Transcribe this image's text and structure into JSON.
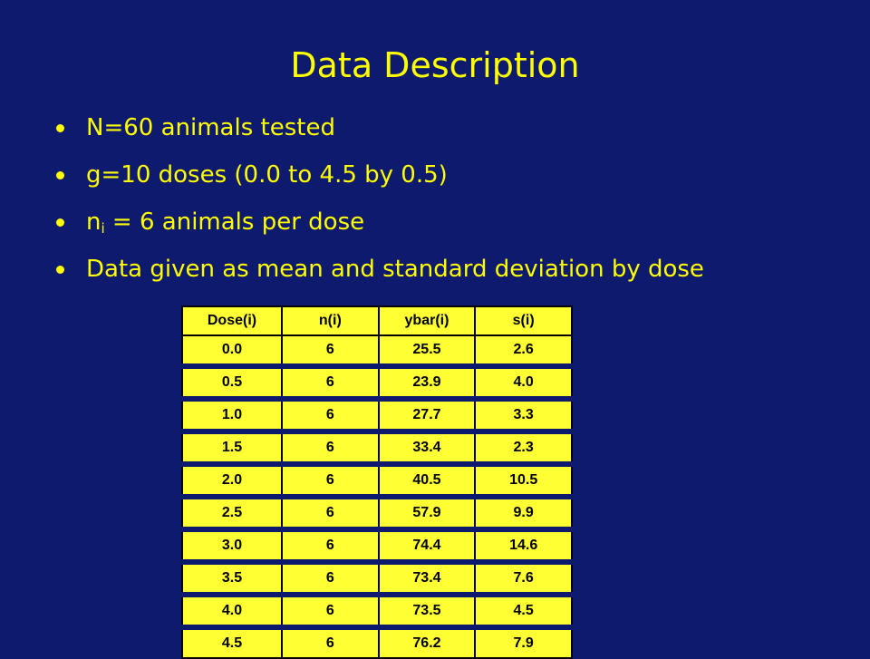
{
  "slide": {
    "title": "Data Description",
    "bullets": [
      {
        "text": "N=60 animals tested"
      },
      {
        "text": "g=10 doses (0.0 to 4.5 by 0.5)"
      },
      {
        "pre": "n",
        "sub": "i",
        "post": " = 6 animals per dose"
      },
      {
        "text": "Data given as mean and standard deviation by dose"
      }
    ],
    "colors": {
      "background": "#0d1a6e",
      "text": "#ffff00",
      "table_fill": "#ffff33"
    }
  },
  "table": {
    "headers": [
      "Dose(i)",
      "n(i)",
      "ybar(i)",
      "s(i)"
    ],
    "rows": [
      [
        "0.0",
        "6",
        "25.5",
        "2.6"
      ],
      [
        "0.5",
        "6",
        "23.9",
        "4.0"
      ],
      [
        "1.0",
        "6",
        "27.7",
        "3.3"
      ],
      [
        "1.5",
        "6",
        "33.4",
        "2.3"
      ],
      [
        "2.0",
        "6",
        "40.5",
        "10.5"
      ],
      [
        "2.5",
        "6",
        "57.9",
        "9.9"
      ],
      [
        "3.0",
        "6",
        "74.4",
        "14.6"
      ],
      [
        "3.5",
        "6",
        "73.4",
        "7.6"
      ],
      [
        "4.0",
        "6",
        "73.5",
        "4.5"
      ],
      [
        "4.5",
        "6",
        "76.2",
        "7.9"
      ]
    ]
  }
}
